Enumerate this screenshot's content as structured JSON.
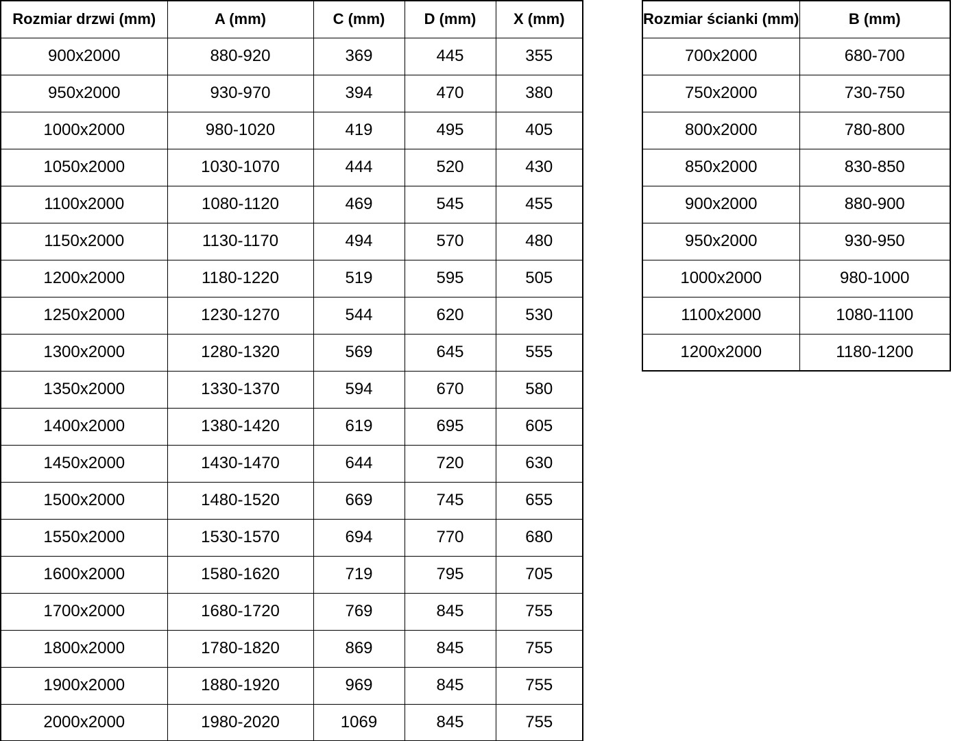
{
  "colors": {
    "background": "#ffffff",
    "border": "#000000",
    "text": "#000000"
  },
  "tables": {
    "doors": {
      "name": "Rozmiar drzwi (mm)",
      "headers": [
        "Rozmiar drzwi (mm)",
        "A (mm)",
        "C (mm)",
        "D (mm)",
        "X (mm)"
      ],
      "rows": [
        [
          "900x2000",
          "880-920",
          "369",
          "445",
          "355"
        ],
        [
          "950x2000",
          "930-970",
          "394",
          "470",
          "380"
        ],
        [
          "1000x2000",
          "980-1020",
          "419",
          "495",
          "405"
        ],
        [
          "1050x2000",
          "1030-1070",
          "444",
          "520",
          "430"
        ],
        [
          "1100x2000",
          "1080-1120",
          "469",
          "545",
          "455"
        ],
        [
          "1150x2000",
          "1130-1170",
          "494",
          "570",
          "480"
        ],
        [
          "1200x2000",
          "1180-1220",
          "519",
          "595",
          "505"
        ],
        [
          "1250x2000",
          "1230-1270",
          "544",
          "620",
          "530"
        ],
        [
          "1300x2000",
          "1280-1320",
          "569",
          "645",
          "555"
        ],
        [
          "1350x2000",
          "1330-1370",
          "594",
          "670",
          "580"
        ],
        [
          "1400x2000",
          "1380-1420",
          "619",
          "695",
          "605"
        ],
        [
          "1450x2000",
          "1430-1470",
          "644",
          "720",
          "630"
        ],
        [
          "1500x2000",
          "1480-1520",
          "669",
          "745",
          "655"
        ],
        [
          "1550x2000",
          "1530-1570",
          "694",
          "770",
          "680"
        ],
        [
          "1600x2000",
          "1580-1620",
          "719",
          "795",
          "705"
        ],
        [
          "1700x2000",
          "1680-1720",
          "769",
          "845",
          "755"
        ],
        [
          "1800x2000",
          "1780-1820",
          "869",
          "845",
          "755"
        ],
        [
          "1900x2000",
          "1880-1920",
          "969",
          "845",
          "755"
        ],
        [
          "2000x2000",
          "1980-2020",
          "1069",
          "845",
          "755"
        ]
      ]
    },
    "walls": {
      "name": "Rozmiar ścianki (mm)",
      "headers": [
        "Rozmiar ścianki (mm)",
        "B (mm)"
      ],
      "rows": [
        [
          "700x2000",
          "680-700"
        ],
        [
          "750x2000",
          "730-750"
        ],
        [
          "800x2000",
          "780-800"
        ],
        [
          "850x2000",
          "830-850"
        ],
        [
          "900x2000",
          "880-900"
        ],
        [
          "950x2000",
          "930-950"
        ],
        [
          "1000x2000",
          "980-1000"
        ],
        [
          "1100x2000",
          "1080-1100"
        ],
        [
          "1200x2000",
          "1180-1200"
        ]
      ]
    }
  }
}
